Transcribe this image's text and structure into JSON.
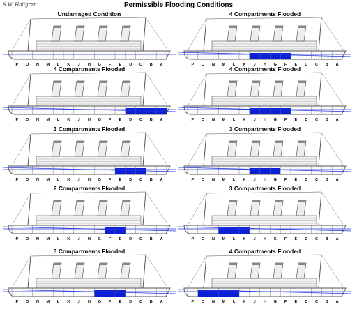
{
  "signature": "S.W. Hallgren",
  "title": "Permissible Flooding Conditions",
  "compartment_letters": [
    "P",
    "O",
    "N",
    "M",
    "L",
    "K",
    "J",
    "H",
    "G",
    "F",
    "E",
    "D",
    "C",
    "B",
    "A"
  ],
  "colors": {
    "flood": "#0b1fd6",
    "waterline": "#2233dd",
    "hull": "#555555"
  },
  "panels": [
    {
      "title": "Undamaged Condition",
      "flooded": []
    },
    {
      "title": "4 Compartments Flooded",
      "flooded": [
        "J",
        "H",
        "G",
        "F"
      ]
    },
    {
      "title": "4 Compartments Flooded",
      "flooded": [
        "D",
        "C",
        "B",
        "A"
      ]
    },
    {
      "title": "4 Compartments Flooded",
      "flooded": [
        "J",
        "H",
        "G",
        "F"
      ]
    },
    {
      "title": "3 Compartments Flooded",
      "flooded": [
        "E",
        "D",
        "C"
      ]
    },
    {
      "title": "3 Compartments Flooded",
      "flooded": [
        "J",
        "H",
        "G"
      ]
    },
    {
      "title": "2 Compartments Flooded",
      "flooded": [
        "F",
        "E"
      ]
    },
    {
      "title": "3 Compartments Flooded",
      "flooded": [
        "M",
        "L",
        "K"
      ]
    },
    {
      "title": "3 Compartments Flooded",
      "flooded": [
        "G",
        "F",
        "E"
      ]
    },
    {
      "title": "4 Compartments Flooded",
      "flooded": [
        "O",
        "N",
        "M",
        "L"
      ]
    }
  ]
}
